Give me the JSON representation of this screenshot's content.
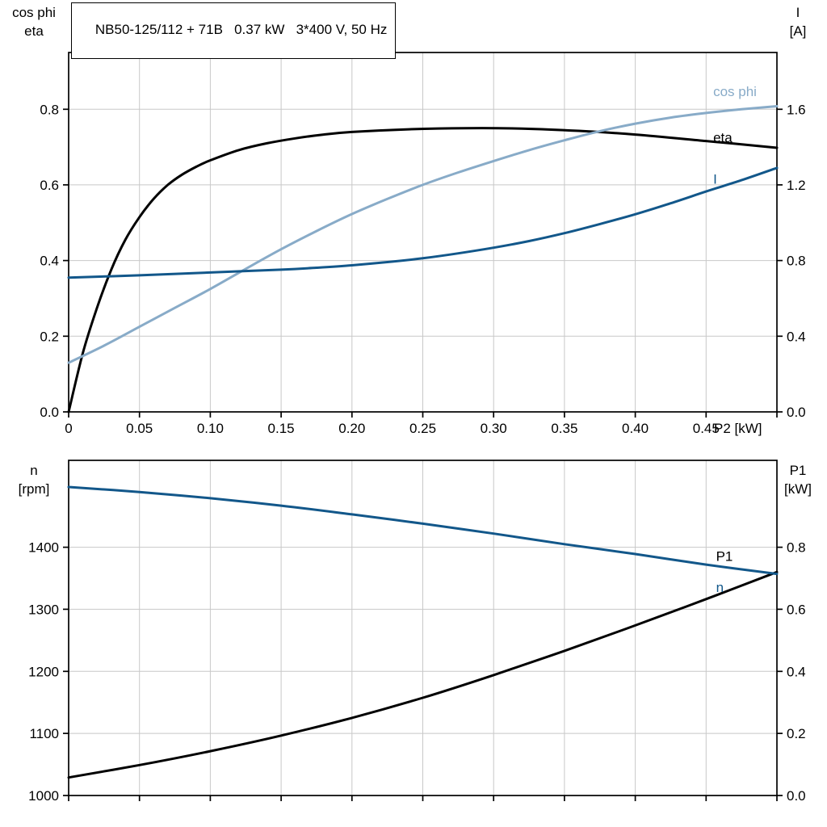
{
  "title": "NB50-125/112 + 71B   0.37 kW   3*400 V, 50 Hz",
  "colors": {
    "grid": "#c8c8c8",
    "axis": "#000000",
    "black_curve": "#000000",
    "light_blue_curve": "#88abc8",
    "dark_blue_curve": "#12578a"
  },
  "chart_data": [
    {
      "type": "line",
      "title": "NB50-125/112 + 71B   0.37 kW   3*400 V, 50 Hz",
      "grid": true,
      "x_axis": {
        "label": "P2 [kW]",
        "min": 0,
        "max": 0.5,
        "ticks": [
          0,
          0.05,
          0.1,
          0.15,
          0.2,
          0.25,
          0.3,
          0.35,
          0.4,
          0.45,
          0.5
        ],
        "tick_labels": [
          "0",
          "0.05",
          "0.10",
          "0.15",
          "0.20",
          "0.25",
          "0.30",
          "0.35",
          "0.40",
          "0.45",
          ""
        ],
        "show_tick_labels": true
      },
      "left_axis": {
        "title_lines": [
          "cos phi",
          "eta"
        ],
        "min": 0,
        "max": 0.95,
        "ticks": [
          0,
          0.2,
          0.4,
          0.6,
          0.8
        ],
        "tick_labels": [
          "0.0",
          "0.2",
          "0.4",
          "0.6",
          "0.8"
        ]
      },
      "right_axis": {
        "title_lines": [
          "I",
          "[A]"
        ],
        "min": 0,
        "max": 1.9,
        "ticks": [
          0,
          0.4,
          0.8,
          1.2,
          1.6
        ],
        "tick_labels": [
          "0.0",
          "0.4",
          "0.8",
          "1.2",
          "1.6"
        ]
      },
      "series": [
        {
          "name": "eta",
          "label": "eta",
          "axis": "left",
          "color": "#000000",
          "label_at": [
            0.455,
            0.726
          ],
          "points": [
            [
              0,
              0
            ],
            [
              0.01,
              0.155
            ],
            [
              0.02,
              0.275
            ],
            [
              0.03,
              0.375
            ],
            [
              0.04,
              0.455
            ],
            [
              0.05,
              0.515
            ],
            [
              0.06,
              0.563
            ],
            [
              0.07,
              0.6
            ],
            [
              0.08,
              0.627
            ],
            [
              0.09,
              0.648
            ],
            [
              0.1,
              0.665
            ],
            [
              0.12,
              0.692
            ],
            [
              0.14,
              0.71
            ],
            [
              0.16,
              0.723
            ],
            [
              0.18,
              0.733
            ],
            [
              0.2,
              0.74
            ],
            [
              0.24,
              0.747
            ],
            [
              0.28,
              0.75
            ],
            [
              0.32,
              0.749
            ],
            [
              0.36,
              0.743
            ],
            [
              0.4,
              0.733
            ],
            [
              0.45,
              0.716
            ],
            [
              0.5,
              0.698
            ]
          ]
        },
        {
          "name": "cos phi",
          "label": "cos phi",
          "axis": "left",
          "color": "#88abc8",
          "label_at": [
            0.455,
            0.848
          ],
          "points": [
            [
              0,
              0.13
            ],
            [
              0.025,
              0.175
            ],
            [
              0.05,
              0.225
            ],
            [
              0.075,
              0.275
            ],
            [
              0.1,
              0.325
            ],
            [
              0.125,
              0.378
            ],
            [
              0.15,
              0.43
            ],
            [
              0.175,
              0.478
            ],
            [
              0.2,
              0.523
            ],
            [
              0.225,
              0.563
            ],
            [
              0.25,
              0.6
            ],
            [
              0.275,
              0.633
            ],
            [
              0.3,
              0.663
            ],
            [
              0.325,
              0.692
            ],
            [
              0.35,
              0.718
            ],
            [
              0.375,
              0.742
            ],
            [
              0.4,
              0.762
            ],
            [
              0.425,
              0.778
            ],
            [
              0.45,
              0.79
            ],
            [
              0.475,
              0.8
            ],
            [
              0.5,
              0.808
            ]
          ]
        },
        {
          "name": "I",
          "label": "I",
          "axis": "right",
          "color": "#12578a",
          "label_at": [
            0.455,
            1.232
          ],
          "points": [
            [
              0,
              0.71
            ],
            [
              0.05,
              0.722
            ],
            [
              0.1,
              0.737
            ],
            [
              0.15,
              0.752
            ],
            [
              0.175,
              0.762
            ],
            [
              0.2,
              0.775
            ],
            [
              0.225,
              0.792
            ],
            [
              0.25,
              0.812
            ],
            [
              0.275,
              0.838
            ],
            [
              0.3,
              0.868
            ],
            [
              0.325,
              0.903
            ],
            [
              0.35,
              0.945
            ],
            [
              0.375,
              0.993
            ],
            [
              0.4,
              1.045
            ],
            [
              0.425,
              1.103
            ],
            [
              0.45,
              1.165
            ],
            [
              0.475,
              1.225
            ],
            [
              0.5,
              1.29
            ]
          ]
        }
      ]
    },
    {
      "type": "line",
      "grid": true,
      "x_axis": {
        "label": "",
        "min": 0,
        "max": 0.5,
        "ticks": [
          0,
          0.05,
          0.1,
          0.15,
          0.2,
          0.25,
          0.3,
          0.35,
          0.4,
          0.45,
          0.5
        ],
        "tick_labels": [
          "",
          "",
          "",
          "",
          "",
          "",
          "",
          "",
          "",
          "",
          ""
        ],
        "show_tick_labels": false
      },
      "left_axis": {
        "title_lines": [
          "n",
          "[rpm]"
        ],
        "min": 1000,
        "max": 1540,
        "ticks": [
          1000,
          1100,
          1200,
          1300,
          1400
        ],
        "tick_labels": [
          "1000",
          "1100",
          "1200",
          "1300",
          "1400"
        ]
      },
      "right_axis": {
        "title_lines": [
          "P1",
          "[kW]"
        ],
        "min": 0,
        "max": 1.08,
        "ticks": [
          0,
          0.2,
          0.4,
          0.6,
          0.8
        ],
        "tick_labels": [
          "0.0",
          "0.2",
          "0.4",
          "0.6",
          "0.8"
        ]
      },
      "series": [
        {
          "name": "P1",
          "label": "P1",
          "axis": "right",
          "color": "#000000",
          "label_at": [
            0.457,
            0.772
          ],
          "points": [
            [
              0,
              0.058
            ],
            [
              0.05,
              0.098
            ],
            [
              0.1,
              0.143
            ],
            [
              0.15,
              0.193
            ],
            [
              0.2,
              0.25
            ],
            [
              0.25,
              0.315
            ],
            [
              0.3,
              0.388
            ],
            [
              0.35,
              0.466
            ],
            [
              0.4,
              0.548
            ],
            [
              0.45,
              0.633
            ],
            [
              0.5,
              0.72
            ]
          ]
        },
        {
          "name": "n",
          "label": "n",
          "axis": "left",
          "color": "#12578a",
          "label_at": [
            0.457,
            1336
          ],
          "points": [
            [
              0,
              1497
            ],
            [
              0.05,
              1489
            ],
            [
              0.1,
              1479
            ],
            [
              0.15,
              1467
            ],
            [
              0.2,
              1453
            ],
            [
              0.25,
              1438
            ],
            [
              0.3,
              1422
            ],
            [
              0.35,
              1405
            ],
            [
              0.4,
              1389
            ],
            [
              0.45,
              1372
            ],
            [
              0.5,
              1357
            ]
          ]
        }
      ]
    }
  ]
}
